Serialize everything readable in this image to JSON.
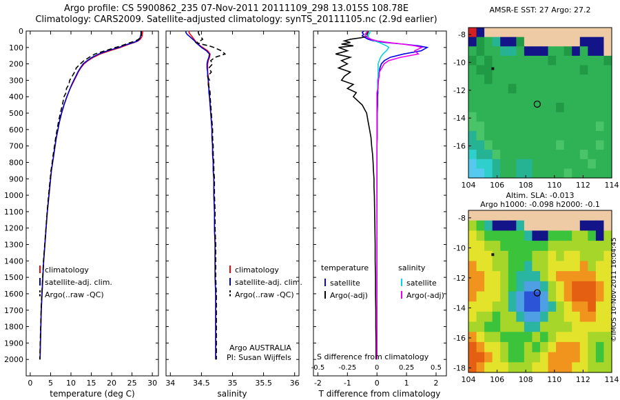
{
  "header": {
    "line1": "Argo profile: CS 5900862_235 07-Nov-2011 20111109_298 13.015S 108.78E",
    "line2": "Climatology: CARS2009. Satellite-adjusted climatology: synTS_20111105.nc (2.9d earlier)"
  },
  "watermark": "©IMOS 10-Nov-2011 16:04:45",
  "chart_data": [
    {
      "id": "temperature_profile",
      "type": "line",
      "xlabel": "temperature (deg C)",
      "xlim": [
        -1,
        31.5
      ],
      "xticks": [
        0,
        5,
        10,
        15,
        20,
        25,
        30
      ],
      "ylim": [
        0,
        2100
      ],
      "yticks": [
        0,
        100,
        200,
        300,
        400,
        500,
        600,
        700,
        800,
        900,
        1000,
        1100,
        1200,
        1300,
        1400,
        1500,
        1600,
        1700,
        1800,
        1900,
        2000
      ],
      "show_ytick_labels": true,
      "depths": [
        0,
        10,
        20,
        30,
        40,
        50,
        60,
        70,
        80,
        90,
        100,
        120,
        140,
        160,
        180,
        200,
        225,
        250,
        275,
        300,
        325,
        350,
        375,
        400,
        450,
        500,
        550,
        600,
        650,
        700,
        750,
        800,
        850,
        900,
        950,
        1000,
        1100,
        1200,
        1300,
        1400,
        1500,
        1600,
        1700,
        1800,
        1900,
        2000
      ],
      "series": [
        {
          "name": "climatology",
          "color": "#ff0000",
          "dash": false,
          "values": [
            27.6,
            27.6,
            27.5,
            27.5,
            27.3,
            27.0,
            26.5,
            25.5,
            24.3,
            23.2,
            22.2,
            19.5,
            17.2,
            15.5,
            14.2,
            13.2,
            12.4,
            11.8,
            11.3,
            10.8,
            10.3,
            9.8,
            9.4,
            9.0,
            8.3,
            7.7,
            7.2,
            6.8,
            6.4,
            6.1,
            5.8,
            5.5,
            5.2,
            5.0,
            4.8,
            4.6,
            4.2,
            3.9,
            3.6,
            3.3,
            3.1,
            2.9,
            2.7,
            2.6,
            2.5,
            2.4
          ]
        },
        {
          "name": "satellite-adj. clim.",
          "color": "#0000cd",
          "dash": false,
          "values": [
            27.2,
            27.2,
            27.2,
            27.1,
            27.0,
            26.8,
            26.4,
            25.3,
            24.0,
            22.8,
            21.8,
            19.0,
            16.8,
            15.2,
            14.0,
            13.0,
            12.3,
            11.7,
            11.2,
            10.7,
            10.2,
            9.8,
            9.4,
            9.0,
            8.3,
            7.7,
            7.2,
            6.8,
            6.4,
            6.1,
            5.8,
            5.5,
            5.2,
            5.0,
            4.8,
            4.6,
            4.2,
            3.9,
            3.6,
            3.3,
            3.1,
            2.9,
            2.7,
            2.6,
            2.5,
            2.4
          ]
        },
        {
          "name": "Argo(..raw -QC)",
          "color": "#000000",
          "dash": true,
          "values": [
            27.3,
            27.3,
            27.3,
            27.3,
            27.1,
            26.6,
            25.9,
            24.6,
            23.5,
            22.4,
            21.0,
            18.4,
            15.9,
            14.5,
            13.2,
            12.3,
            11.3,
            10.9,
            10.3,
            9.7,
            9.5,
            8.9,
            8.8,
            8.3,
            7.9,
            7.4,
            6.95,
            6.6,
            6.25,
            5.95,
            5.65,
            5.4,
            5.1,
            4.9,
            4.7,
            4.5,
            4.15,
            3.85,
            3.55,
            3.25,
            3.05,
            2.85,
            2.65,
            2.55,
            2.45,
            2.35
          ]
        }
      ]
    },
    {
      "id": "salinity_profile",
      "type": "line",
      "xlabel": "salinity",
      "xlim": [
        33.93,
        36.07
      ],
      "xticks": [
        34,
        34.5,
        35,
        35.5,
        36
      ],
      "ylim": [
        0,
        2100
      ],
      "yticks": [
        0,
        100,
        200,
        300,
        400,
        500,
        600,
        700,
        800,
        900,
        1000,
        1100,
        1200,
        1300,
        1400,
        1500,
        1600,
        1700,
        1800,
        1900,
        2000
      ],
      "show_ytick_labels": false,
      "annotations": [
        "Argo AUSTRALIA",
        "PI: Susan Wijffels"
      ],
      "depths": [
        0,
        10,
        20,
        30,
        40,
        50,
        60,
        70,
        80,
        90,
        100,
        120,
        140,
        160,
        180,
        200,
        225,
        250,
        275,
        300,
        325,
        350,
        375,
        400,
        450,
        500,
        550,
        600,
        650,
        700,
        750,
        800,
        850,
        900,
        950,
        1000,
        1100,
        1200,
        1300,
        1400,
        1500,
        1600,
        1700,
        1800,
        1900,
        2000
      ],
      "series": [
        {
          "name": "climatology",
          "color": "#ff0000",
          "dash": false,
          "values": [
            34.3,
            34.3,
            34.32,
            34.34,
            34.36,
            34.38,
            34.4,
            34.42,
            34.45,
            34.48,
            34.52,
            34.6,
            34.64,
            34.63,
            34.61,
            34.6,
            34.6,
            34.6,
            34.61,
            34.61,
            34.62,
            34.62,
            34.63,
            34.63,
            34.64,
            34.65,
            34.66,
            34.67,
            34.67,
            34.68,
            34.68,
            34.69,
            34.69,
            34.7,
            34.7,
            34.7,
            34.71,
            34.71,
            34.72,
            34.72,
            34.72,
            34.73,
            34.73,
            34.73,
            34.73,
            34.73
          ]
        },
        {
          "name": "satellite-adj. clim.",
          "color": "#0000cd",
          "dash": false,
          "values": [
            34.25,
            34.25,
            34.27,
            34.3,
            34.33,
            34.36,
            34.39,
            34.41,
            34.44,
            34.47,
            34.5,
            34.58,
            34.63,
            34.62,
            34.6,
            34.59,
            34.59,
            34.6,
            34.6,
            34.61,
            34.61,
            34.62,
            34.62,
            34.63,
            34.64,
            34.65,
            34.66,
            34.67,
            34.67,
            34.68,
            34.68,
            34.69,
            34.69,
            34.7,
            34.7,
            34.7,
            34.71,
            34.71,
            34.72,
            34.72,
            34.72,
            34.73,
            34.73,
            34.73,
            34.73,
            34.73
          ]
        },
        {
          "name": "Argo(..raw -QC)",
          "color": "#000000",
          "dash": true,
          "values": [
            34.45,
            34.45,
            34.46,
            34.48,
            34.5,
            34.52,
            34.48,
            34.42,
            34.5,
            34.62,
            34.7,
            34.82,
            34.88,
            34.72,
            34.65,
            34.68,
            34.62,
            34.66,
            34.6,
            34.63,
            34.61,
            34.63,
            34.64,
            34.64,
            34.65,
            34.66,
            34.67,
            34.68,
            34.68,
            34.69,
            34.69,
            34.7,
            34.7,
            34.71,
            34.71,
            34.71,
            34.72,
            34.72,
            34.73,
            34.73,
            34.73,
            34.74,
            34.74,
            34.74,
            34.74,
            34.74
          ]
        }
      ]
    },
    {
      "id": "difference_profile",
      "type": "line",
      "xlabel": "T difference from climatology",
      "xlim": [
        -2.15,
        2.35
      ],
      "xticks": [
        -2,
        -1,
        0,
        1,
        2
      ],
      "ylim": [
        0,
        2100
      ],
      "yticks": [
        0,
        100,
        200,
        300,
        400,
        500,
        600,
        700,
        800,
        900,
        1000,
        1100,
        1200,
        1300,
        1400,
        1500,
        1600,
        1700,
        1800,
        1900,
        2000
      ],
      "show_ytick_labels": false,
      "s_axis": {
        "label": "S difference from climatology",
        "ticks": [
          -0.5,
          -0.25,
          0,
          0.25,
          0.5
        ],
        "scale_factor": 4
      },
      "legend_groups": [
        {
          "title": "temperature"
        },
        {
          "title": "salinity"
        }
      ],
      "depths": [
        0,
        10,
        20,
        30,
        40,
        50,
        60,
        70,
        80,
        90,
        100,
        120,
        140,
        160,
        180,
        200,
        225,
        250,
        275,
        300,
        325,
        350,
        375,
        400,
        450,
        500,
        550,
        600,
        650,
        700,
        750,
        800,
        850,
        900,
        950,
        1000,
        1100,
        1200,
        1300,
        1400,
        1500,
        1600,
        1700,
        1800,
        1900,
        2000
      ],
      "series": [
        {
          "name": "satellite",
          "group": "temperature",
          "axis": "T",
          "color": "#0000ee",
          "dash": false,
          "values": [
            -0.45,
            -0.5,
            -0.45,
            -0.5,
            -0.4,
            -0.3,
            -0.1,
            0.3,
            0.9,
            1.4,
            1.7,
            1.5,
            0.9,
            0.45,
            0.25,
            0.15,
            0.1,
            0.08,
            0.06,
            0.05,
            0.04,
            0.03,
            0.03,
            0.02,
            0.02,
            0.01,
            0.01,
            0.01,
            0.01,
            0,
            0,
            0,
            0,
            0,
            0,
            0,
            0,
            0,
            0,
            0,
            0,
            0,
            0,
            0,
            0,
            0
          ]
        },
        {
          "name": "Argo(-adj)",
          "group": "temperature",
          "axis": "T",
          "color": "#000000",
          "dash": false,
          "values": [
            -0.3,
            -0.3,
            -0.35,
            -0.3,
            -0.5,
            -0.9,
            -1.1,
            -0.9,
            -1.2,
            -0.8,
            -1.3,
            -1.0,
            -1.4,
            -0.9,
            -1.2,
            -1.0,
            -1.3,
            -0.9,
            -1.1,
            -1.2,
            -0.8,
            -1.0,
            -0.7,
            -0.8,
            -0.5,
            -0.35,
            -0.3,
            -0.25,
            -0.2,
            -0.18,
            -0.15,
            -0.13,
            -0.12,
            -0.1,
            -0.1,
            -0.09,
            -0.08,
            -0.07,
            -0.06,
            -0.06,
            -0.05,
            -0.05,
            -0.04,
            -0.04,
            -0.03,
            -0.03
          ]
        },
        {
          "name": "satellite",
          "group": "salinity",
          "axis": "S",
          "color": "#00d5e0",
          "dash": false,
          "values": [
            -0.06,
            -0.06,
            -0.07,
            -0.08,
            -0.07,
            -0.05,
            -0.02,
            0.02,
            0.05,
            0.08,
            0.1,
            0.08,
            0.05,
            0.03,
            0.02,
            0.01,
            0.01,
            0.01,
            0.01,
            0.005,
            0.005,
            0.005,
            0,
            0,
            0,
            0,
            0,
            0,
            0,
            0,
            0,
            0,
            0,
            0,
            0,
            0,
            0,
            0,
            0,
            0,
            0,
            0,
            0,
            0,
            0,
            0
          ]
        },
        {
          "name": "Argo(-adj)",
          "group": "salinity",
          "axis": "S",
          "color": "#ee00ee",
          "dash": false,
          "values": [
            -0.08,
            -0.09,
            -0.1,
            -0.1,
            -0.08,
            -0.05,
            0,
            0.1,
            0.22,
            0.32,
            0.38,
            0.32,
            0.35,
            0.2,
            0.1,
            0.06,
            0.04,
            0.02,
            0.02,
            0.01,
            0.01,
            0.01,
            0,
            0,
            0,
            0,
            0,
            0,
            0,
            0,
            0,
            0,
            0,
            0,
            0,
            0,
            0,
            0,
            0,
            0,
            0,
            0,
            0,
            0,
            0,
            0
          ]
        }
      ]
    },
    {
      "id": "sst_map",
      "type": "heatmap",
      "title": "AMSR-E SST: 27 Argo: 27.2",
      "lon_range": [
        104,
        114
      ],
      "lat_range": [
        -7.5,
        -18.3
      ],
      "xticks": [
        104,
        106,
        108,
        110,
        112,
        114
      ],
      "yticks": [
        -8,
        -10,
        -12,
        -14,
        -16
      ],
      "palette": {
        "L": "#eecba4",
        "n": "#141489",
        "r": "#d42020",
        "a": "#2fb155",
        "b": "#219a46",
        "c": "#49c468",
        "d": "#26b394",
        "e": "#2fd0cb",
        "f": "#55c9ee"
      },
      "grid": [
        "rnLLLLLLLLLLLLLLLL",
        "nbadnnbLLLLLLLnnnL",
        "abaaddannnaabnannL",
        "babaaaaaaabaaaaaab",
        "abbaaaaaaaaaaabaaa",
        "aabaaaaaaaaaaaaaaa",
        "aaaaabaaaaaaaaaaaa",
        "aaaaaaaaaaaaaaaaaa",
        "aaaaaaaaaaabaaaaaa",
        "caaaaaaaaaaaaaaaaa",
        "ccaaaaaaaaaaaaaaca",
        "dcaaaaaaaaaaaaaaaa",
        "ddcaaaaaaaacaaaaca",
        "eddcaaaaaaaaaacaaa",
        "feedaaddaaaaaaacaa",
        "ffedaaddaaaacaaaaa"
      ],
      "markers": [
        {
          "lon": 108.8,
          "lat": -13.0,
          "shape": "circle",
          "name": "argo-position-marker"
        },
        {
          "lon": 105.7,
          "lat": -10.45,
          "shape": "dot",
          "name": "christmas-island-marker"
        }
      ]
    },
    {
      "id": "sla_map",
      "type": "heatmap",
      "title_lines": [
        "Altim. SLA: -0.013",
        "Argo h1000: -0.098 h2000: -0.1"
      ],
      "lon_range": [
        104,
        114
      ],
      "lat_range": [
        -7.5,
        -18.3
      ],
      "xticks": [
        104,
        106,
        108,
        110,
        112,
        114
      ],
      "yticks": [
        -8,
        -10,
        -12,
        -14,
        -16,
        -18
      ],
      "palette": {
        "L": "#eecba4",
        "n": "#141489",
        "y": "#e3e32b",
        "G": "#a6d629",
        "g": "#3cc33c",
        "t": "#2ab5a2",
        "b": "#4f9fe4",
        "B": "#2b55d6",
        "o": "#f0941e",
        "O": "#e55f12"
      },
      "grid": [
        "LLLLLLLLLLLLLLLLLL",
        "GgtnnntLLLLLLLnnnL",
        "yGgggggtnngggGGgnG",
        "yyGGggggggGGGGGGGG",
        "yyyGGgggGGyGyyGGGy",
        "oyyGGggtGGyyyyoGyy",
        "ooyyGgtttGyoooooyy",
        "ooyyGgtbbtGyoOOOoy",
        "oyyyGtbBBbGyoOOOoy",
        "yyyGGtbBBbtGyooOyy",
        "yGGgGGtbbtGGyyooyy",
        "GGggGGGttGGGGyyyyy",
        "oyGGggggGgGyyyyGGG",
        "OoyyGggGgGyoooyGgG",
        "OOoyGggGGyooooyGgG",
        "OoyyyGGGyyoooyyGGG"
      ],
      "markers": [
        {
          "lon": 108.8,
          "lat": -13.0,
          "shape": "circle",
          "name": "argo-position-marker"
        },
        {
          "lon": 105.7,
          "lat": -10.45,
          "shape": "dot",
          "name": "christmas-island-marker"
        }
      ]
    }
  ]
}
